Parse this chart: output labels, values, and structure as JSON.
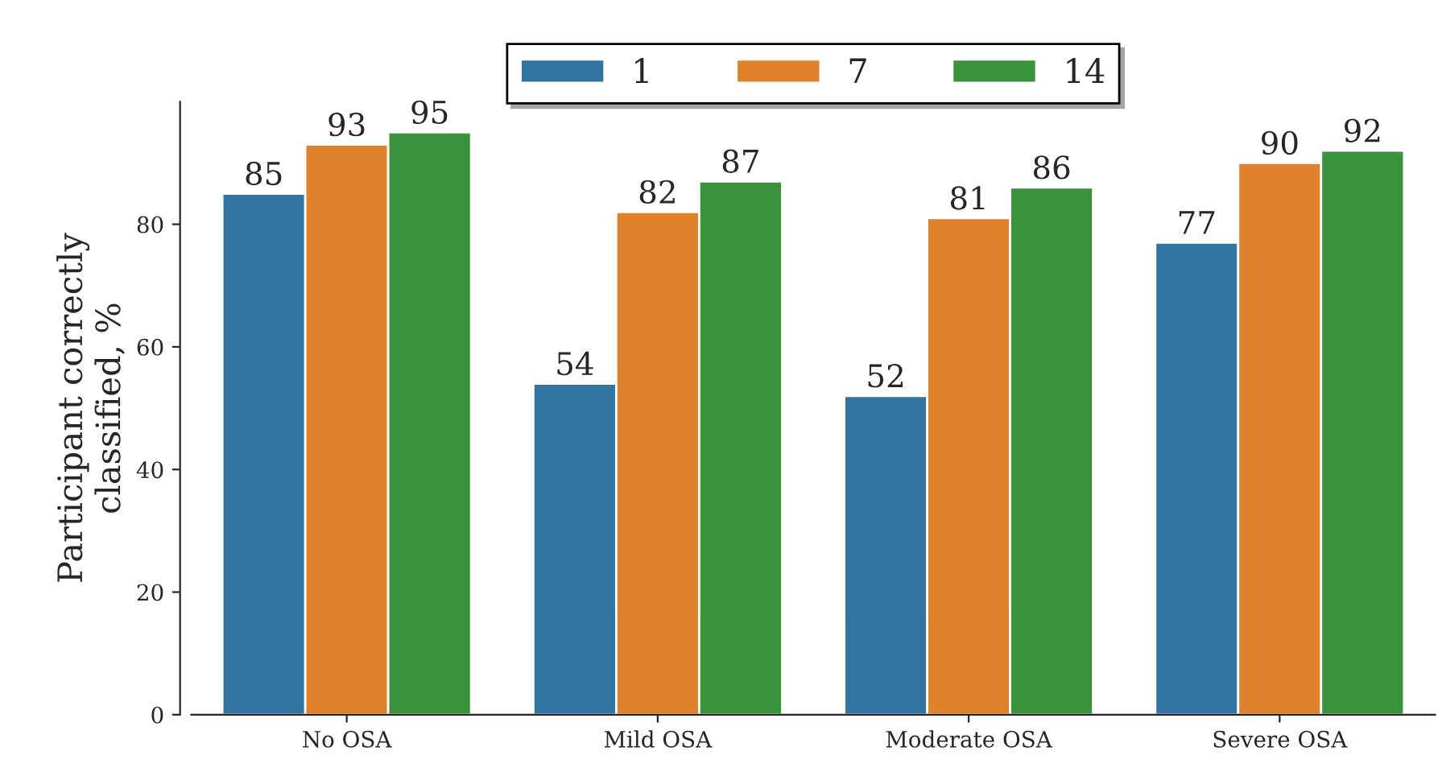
{
  "chart_data": {
    "type": "bar",
    "ylabel": "Participant correctly\nclassified, %",
    "categories": [
      "No OSA",
      "Mild OSA",
      "Moderate OSA",
      "Severe OSA"
    ],
    "series": [
      {
        "name": "1",
        "color": "#3274a1",
        "values": [
          85,
          54,
          52,
          77
        ]
      },
      {
        "name": "7",
        "color": "#e1812c",
        "values": [
          93,
          82,
          81,
          90
        ]
      },
      {
        "name": "14",
        "color": "#3a923a",
        "values": [
          95,
          87,
          86,
          92
        ]
      }
    ],
    "ylim": [
      0,
      100
    ],
    "yticks": [
      0,
      20,
      40,
      60,
      80
    ],
    "data_labels": true,
    "legend": "top",
    "grid": false
  }
}
